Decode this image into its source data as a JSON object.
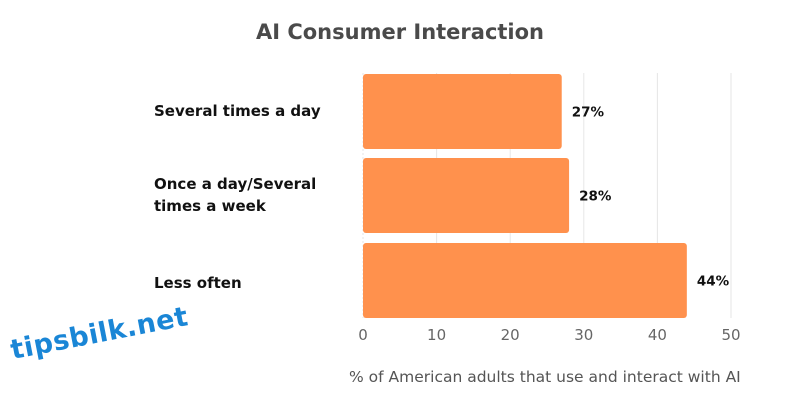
{
  "chart_data": {
    "type": "bar",
    "orientation": "horizontal",
    "title": "AI Consumer Interaction",
    "xlabel": "% of American adults that use and interact with AI",
    "ylabel": "",
    "categories": [
      "Several times a day",
      "Once a day/Several times a week",
      "Less often"
    ],
    "values": [
      27,
      28,
      44
    ],
    "data_labels": [
      "27%",
      "28%",
      "44%"
    ],
    "xlim": [
      0,
      50
    ],
    "xticks": [
      0,
      10,
      20,
      30,
      40,
      50
    ],
    "grid": true,
    "bar_color": "#FF914D"
  },
  "watermark": "tipsbilk.net"
}
